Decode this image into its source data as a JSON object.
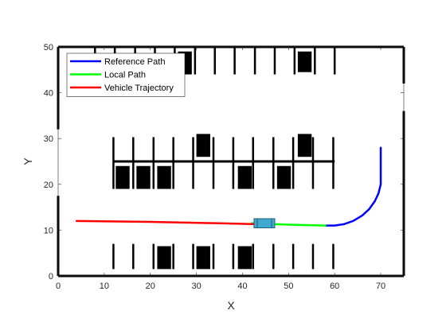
{
  "chart_data": {
    "type": "line",
    "xlabel": "X",
    "ylabel": "Y",
    "xlim": [
      0,
      75
    ],
    "ylim": [
      0,
      50
    ],
    "xticks": [
      0,
      10,
      20,
      30,
      40,
      50,
      60,
      70
    ],
    "yticks": [
      0,
      10,
      20,
      30,
      40,
      50
    ],
    "grid": false,
    "legend_position": "top-left",
    "series": [
      {
        "name": "Reference Path",
        "color": "#0000ff",
        "x": [
          58,
          60,
          62,
          64,
          66,
          67.5,
          68.7,
          69.5,
          70,
          70,
          70
        ],
        "y": [
          11,
          11,
          11.3,
          12,
          13.2,
          14.6,
          16.3,
          18.0,
          20,
          24,
          28
        ]
      },
      {
        "name": "Local Path",
        "color": "#00ff00",
        "x": [
          42,
          50,
          58
        ],
        "y": [
          11.5,
          11.2,
          11
        ]
      },
      {
        "name": "Vehicle Trajectory",
        "color": "#ff0000",
        "x": [
          4,
          20,
          35,
          43
        ],
        "y": [
          12,
          11.8,
          11.5,
          11.3
        ]
      }
    ],
    "environment": {
      "boundary": [
        {
          "x": [
            0,
            75
          ],
          "y": [
            50,
            50
          ]
        },
        {
          "x": [
            0,
            75
          ],
          "y": [
            0,
            0
          ]
        },
        {
          "x": [
            0,
            0
          ],
          "y": [
            0,
            17.5
          ]
        },
        {
          "x": [
            0,
            0
          ],
          "y": [
            32,
            50
          ]
        },
        {
          "x": [
            75,
            75
          ],
          "y": [
            0,
            36
          ]
        },
        {
          "x": [
            75,
            75
          ],
          "y": [
            42,
            50
          ]
        },
        {
          "x": [
            12,
            60
          ],
          "y": [
            25,
            25
          ]
        }
      ],
      "divider_x": [
        12,
        16.3,
        20.7,
        25,
        29.3,
        33.7,
        38,
        42.3,
        46.7,
        51,
        55.3,
        59.7
      ],
      "top_divider_x": [
        8,
        12.3,
        16.7,
        21,
        25.3,
        29.7,
        34,
        38.3,
        42.7,
        47,
        51.3,
        55.7,
        60
      ],
      "top_dividers_y": [
        44,
        50
      ],
      "middle_upper_y": [
        30.3,
        25
      ],
      "middle_lower_y": [
        25,
        19
      ],
      "bottom_dividers_y": [
        1.5,
        7
      ],
      "parked_cars": [
        {
          "x": [
            26,
            29
          ],
          "y": [
            44,
            49
          ]
        },
        {
          "x": [
            52,
            55
          ],
          "y": [
            44.5,
            49
          ]
        },
        {
          "x": [
            30,
            33
          ],
          "y": [
            26,
            31
          ]
        },
        {
          "x": [
            52,
            55
          ],
          "y": [
            26,
            31
          ]
        },
        {
          "x": [
            12.5,
            15.5
          ],
          "y": [
            19,
            24
          ]
        },
        {
          "x": [
            17,
            20
          ],
          "y": [
            19,
            24
          ]
        },
        {
          "x": [
            21.5,
            24.5
          ],
          "y": [
            19,
            24
          ]
        },
        {
          "x": [
            39,
            42
          ],
          "y": [
            19,
            24
          ]
        },
        {
          "x": [
            47.5,
            50.5
          ],
          "y": [
            19,
            24
          ]
        },
        {
          "x": [
            21.5,
            24.5
          ],
          "y": [
            1.5,
            6.5
          ]
        },
        {
          "x": [
            30,
            33
          ],
          "y": [
            1.5,
            6.5
          ]
        },
        {
          "x": [
            39,
            42
          ],
          "y": [
            1.5,
            6.5
          ]
        }
      ],
      "ego_vehicle": {
        "x": [
          42.5,
          47
        ],
        "y": [
          10.5,
          12.5
        ],
        "color": "#41a8d0"
      }
    }
  }
}
